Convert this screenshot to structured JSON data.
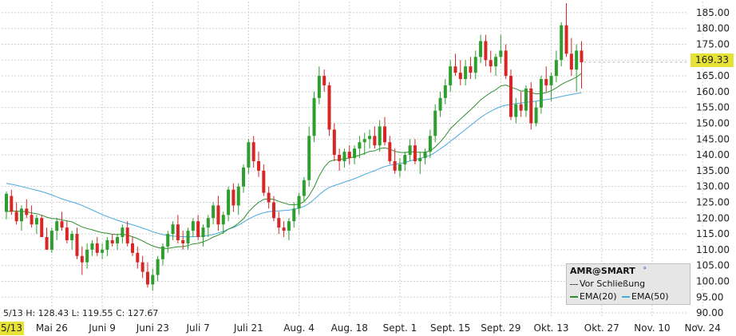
{
  "chart_data": {
    "type": "candlestick",
    "symbol_label": "AMR@SMART",
    "info_text": "5/13 H: 128.43 L: 119.55 C: 127.67",
    "last_price": "169.33",
    "start_label": "5/13",
    "ylim": [
      88.5,
      188.5
    ],
    "y_ticks": [
      90,
      95,
      100,
      105,
      110,
      115,
      120,
      125,
      130,
      135,
      140,
      145,
      150,
      155,
      160,
      165,
      170,
      175,
      180,
      185
    ],
    "y_tick_labels": [
      "90.00",
      "95.00",
      "100.00",
      "105.00",
      "110.00",
      "115.00",
      "120.00",
      "125.00",
      "130.00",
      "135.00",
      "140.00",
      "145.00",
      "150.00",
      "155.00",
      "160.00",
      "165.00",
      "170.00",
      "175.00",
      "180.00",
      "185.00"
    ],
    "x_tick_labels": [
      {
        "label": "Mai 26",
        "index": 9
      },
      {
        "label": "Juni 9",
        "index": 19
      },
      {
        "label": "Juni 23",
        "index": 29
      },
      {
        "label": "Juli 7",
        "index": 38
      },
      {
        "label": "Juli 21",
        "index": 48
      },
      {
        "label": "Aug. 4",
        "index": 58
      },
      {
        "label": "Aug. 18",
        "index": 68
      },
      {
        "label": "Sept. 1",
        "index": 78
      },
      {
        "label": "Sept. 15",
        "index": 88
      },
      {
        "label": "Sept. 29",
        "index": 98
      },
      {
        "label": "Okt. 13",
        "index": 108
      },
      {
        "label": "Okt. 27",
        "index": 118
      },
      {
        "label": "Nov. 10",
        "index": 128
      },
      {
        "label": "Nov. 24",
        "index": 138
      }
    ],
    "grid": true,
    "legend": {
      "position": "bottom-right",
      "items": [
        "Vor Schließung",
        "EMA(20)",
        "EMA(50)"
      ]
    },
    "colors": {
      "up": "#2e9e2e",
      "down": "#d62626",
      "ema20": "#2f8f2f",
      "ema50": "#4aa8e0",
      "highlight": "#e7e336"
    },
    "candles": [
      [
        122,
        128.4,
        119.6,
        127.7
      ],
      [
        127,
        129,
        121,
        122
      ],
      [
        122,
        125,
        118,
        119
      ],
      [
        119,
        124,
        116,
        123
      ],
      [
        123,
        126,
        120,
        121
      ],
      [
        121,
        124,
        117,
        118
      ],
      [
        118,
        121,
        115,
        120
      ],
      [
        120,
        121,
        114,
        114
      ],
      [
        114,
        117,
        110,
        110
      ],
      [
        110,
        117,
        109,
        116
      ],
      [
        116,
        120,
        113,
        119
      ],
      [
        119,
        122,
        116,
        117
      ],
      [
        117,
        119,
        112,
        113
      ],
      [
        113,
        116,
        110,
        115
      ],
      [
        115,
        117,
        107,
        108
      ],
      [
        108,
        111,
        102,
        106
      ],
      [
        106,
        112,
        104,
        110
      ],
      [
        110,
        113,
        108,
        112
      ],
      [
        112,
        114,
        108,
        109
      ],
      [
        109,
        112,
        107,
        110
      ],
      [
        110,
        114,
        108,
        113
      ],
      [
        113,
        115,
        111,
        112
      ],
      [
        112,
        115,
        110,
        114
      ],
      [
        114,
        118,
        112,
        117
      ],
      [
        117,
        119,
        111,
        112
      ],
      [
        112,
        114,
        108,
        109
      ],
      [
        109,
        111,
        104,
        106
      ],
      [
        106,
        108,
        101,
        103
      ],
      [
        103,
        106,
        98,
        99
      ],
      [
        99,
        104,
        97,
        102
      ],
      [
        102,
        108,
        100,
        107
      ],
      [
        107,
        112,
        105,
        111
      ],
      [
        111,
        116,
        109,
        115
      ],
      [
        115,
        119,
        113,
        118
      ],
      [
        118,
        121,
        112,
        113
      ],
      [
        113,
        116,
        110,
        112
      ],
      [
        112,
        117,
        110,
        116
      ],
      [
        116,
        120,
        114,
        119
      ],
      [
        119,
        121,
        113,
        114
      ],
      [
        114,
        118,
        111,
        117
      ],
      [
        117,
        121,
        114,
        120
      ],
      [
        120,
        125,
        118,
        124
      ],
      [
        124,
        127,
        116,
        118
      ],
      [
        118,
        122,
        115,
        121
      ],
      [
        121,
        130,
        119,
        129
      ],
      [
        129,
        131,
        122,
        124
      ],
      [
        124,
        131,
        121,
        130
      ],
      [
        130,
        137,
        128,
        136
      ],
      [
        136,
        145,
        134,
        144
      ],
      [
        144,
        146,
        136,
        138
      ],
      [
        138,
        141,
        133,
        135
      ],
      [
        135,
        137,
        127,
        128
      ],
      [
        128,
        130,
        123,
        125
      ],
      [
        125,
        127,
        119,
        120
      ],
      [
        120,
        122,
        115,
        117
      ],
      [
        117,
        119,
        114,
        116
      ],
      [
        116,
        120,
        113,
        119
      ],
      [
        119,
        125,
        117,
        123
      ],
      [
        123,
        128,
        121,
        127
      ],
      [
        127,
        133,
        125,
        132
      ],
      [
        132,
        149,
        130,
        146
      ],
      [
        146,
        160,
        144,
        158
      ],
      [
        158,
        168,
        156,
        165
      ],
      [
        165,
        167,
        160,
        162
      ],
      [
        162,
        163,
        146,
        148
      ],
      [
        148,
        150,
        138,
        140
      ],
      [
        140,
        142,
        135,
        138
      ],
      [
        138,
        142,
        136,
        141
      ],
      [
        141,
        143,
        137,
        139
      ],
      [
        139,
        143,
        137,
        142
      ],
      [
        142,
        146,
        139,
        144
      ],
      [
        144,
        147,
        140,
        145
      ],
      [
        145,
        148,
        142,
        146
      ],
      [
        146,
        149,
        142,
        143
      ],
      [
        143,
        151,
        141,
        149
      ],
      [
        149,
        152,
        143,
        144
      ],
      [
        144,
        146,
        137,
        138
      ],
      [
        138,
        142,
        134,
        135
      ],
      [
        135,
        139,
        133,
        137
      ],
      [
        137,
        141,
        135,
        140
      ],
      [
        140,
        145,
        138,
        143
      ],
      [
        143,
        145,
        137,
        138
      ],
      [
        138,
        141,
        134,
        139
      ],
      [
        139,
        142,
        137,
        141
      ],
      [
        141,
        148,
        139,
        146
      ],
      [
        146,
        156,
        144,
        154
      ],
      [
        154,
        160,
        152,
        158
      ],
      [
        158,
        164,
        156,
        162
      ],
      [
        162,
        170,
        160,
        168
      ],
      [
        168,
        172,
        165,
        166
      ],
      [
        166,
        170,
        162,
        164
      ],
      [
        164,
        170,
        162,
        168
      ],
      [
        168,
        171,
        164,
        166
      ],
      [
        166,
        173,
        164,
        171
      ],
      [
        171,
        178,
        169,
        176
      ],
      [
        176,
        178,
        168,
        170
      ],
      [
        170,
        173,
        166,
        168
      ],
      [
        168,
        172,
        165,
        171
      ],
      [
        171,
        178,
        169,
        173
      ],
      [
        173,
        175,
        164,
        165
      ],
      [
        165,
        167,
        151,
        152
      ],
      [
        152,
        158,
        150,
        156
      ],
      [
        156,
        160,
        152,
        154
      ],
      [
        154,
        162,
        152,
        161
      ],
      [
        161,
        163,
        148,
        150
      ],
      [
        150,
        157,
        149,
        155
      ],
      [
        155,
        165,
        153,
        164
      ],
      [
        164,
        168,
        160,
        162
      ],
      [
        162,
        166,
        157,
        165
      ],
      [
        165,
        173,
        163,
        170
      ],
      [
        170,
        182,
        168,
        181
      ],
      [
        181,
        188,
        171,
        172
      ],
      [
        172,
        177,
        165,
        167
      ],
      [
        167,
        175,
        160,
        173
      ],
      [
        173,
        176,
        161,
        169.3
      ]
    ],
    "ema20": [
      122,
      122.3,
      122.2,
      122.1,
      122,
      121.6,
      121.4,
      120.9,
      120.3,
      119.9,
      119.8,
      119.4,
      119.1,
      118.8,
      118,
      117.2,
      116.7,
      116.3,
      115.8,
      115.4,
      115.2,
      114.9,
      114.8,
      114.9,
      114.6,
      114.1,
      113.5,
      112.8,
      111.9,
      111.2,
      110.7,
      110.4,
      110.4,
      110.7,
      110.9,
      111,
      111.3,
      111.8,
      112,
      112.5,
      113.1,
      114,
      114.6,
      115.4,
      116.5,
      117.2,
      118.4,
      119.8,
      122,
      123.6,
      125,
      125.9,
      126.1,
      125.9,
      125.3,
      124.8,
      124.3,
      124.2,
      124.4,
      125.2,
      127.1,
      129.8,
      133.3,
      136.1,
      137.9,
      138.4,
      138.5,
      138.8,
      139,
      139.4,
      139.9,
      140.5,
      141.1,
      141.3,
      142,
      142.2,
      141.8,
      141.1,
      140.8,
      140.7,
      141,
      140.9,
      140.8,
      140.8,
      141.3,
      142.5,
      144.1,
      146,
      148.3,
      149.8,
      151.3,
      152.8,
      154.2,
      155.8,
      157.4,
      158.6,
      159.7,
      160.6,
      161.8,
      162.1,
      161.4,
      160.9,
      160.2,
      160.3,
      159.7,
      159.3,
      159.4,
      159.7,
      160.3,
      161.2,
      162.3,
      163.1,
      163.8,
      164.6,
      165.8
    ],
    "ema50": [
      131,
      130.7,
      130.4,
      130,
      129.6,
      129.2,
      128.8,
      128.4,
      127.9,
      127.3,
      126.7,
      126.1,
      125.6,
      125.1,
      124.6,
      124,
      123.3,
      122.6,
      121.8,
      121.1,
      120.5,
      119.9,
      119.3,
      118.8,
      118.3,
      117.9,
      117.4,
      116.8,
      116.3,
      115.7,
      115.2,
      114.8,
      114.5,
      114.3,
      114.2,
      114.1,
      114.1,
      114.1,
      114.2,
      114.3,
      114.5,
      114.8,
      115.3,
      115.8,
      116.5,
      117,
      117.8,
      118.7,
      119.7,
      120.5,
      121.2,
      121.7,
      122,
      122.2,
      122.3,
      122.4,
      122.5,
      122.8,
      123.2,
      123.7,
      124.6,
      125.9,
      127.4,
      128.7,
      129.7,
      130.3,
      130.8,
      131.4,
      131.9,
      132.5,
      133.1,
      133.8,
      134.4,
      135,
      135.7,
      136.3,
      136.7,
      137,
      137.3,
      137.6,
      138.1,
      138.5,
      138.9,
      139.3,
      139.9,
      140.8,
      141.9,
      143,
      144.3,
      145.5,
      146.8,
      148,
      149.3,
      150.6,
      151.8,
      152.9,
      153.8,
      154.6,
      155.3,
      155.7,
      156,
      156.2,
      156.4,
      156.6,
      156.8,
      157,
      157.3,
      157.5,
      157.8,
      158.1,
      158.5,
      158.8,
      159.1,
      159.4,
      159.7
    ]
  }
}
